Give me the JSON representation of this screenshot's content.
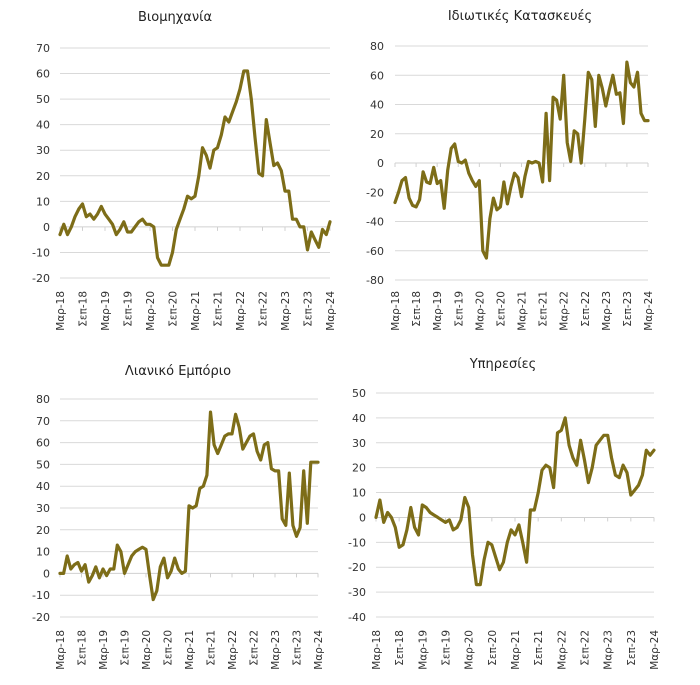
{
  "colors": {
    "line": "#7d6d18",
    "grid": "#d9d9d9"
  },
  "x_tick_labels": [
    "Μαρ-18",
    "Σεπ-18",
    "Μαρ-19",
    "Σεπ-19",
    "Μαρ-20",
    "Σεπ-20",
    "Μαρ-21",
    "Σεπ-21",
    "Μαρ-22",
    "Σεπ-22",
    "Μαρ-23",
    "Σεπ-23",
    "Μαρ-24"
  ],
  "chart_data": [
    {
      "type": "line",
      "title": "Βιομηχανία",
      "xlabel": "",
      "ylabel": "",
      "ylim": [
        -20,
        70
      ],
      "yticks": [
        70,
        60,
        50,
        40,
        30,
        20,
        10,
        0,
        -10,
        -20
      ],
      "grid": true,
      "x_range": [
        "Μαρ-18",
        "Μαρ-24"
      ],
      "values": [
        -3,
        1,
        -3,
        0,
        4,
        7,
        9,
        4,
        5,
        3,
        5,
        8,
        5,
        3,
        1,
        -3,
        -1,
        2,
        -2,
        -2,
        0,
        2,
        3,
        1,
        1,
        0,
        -12,
        -15,
        -15,
        -15,
        -10,
        -1,
        3,
        7,
        12,
        11,
        12,
        20,
        31,
        28,
        23,
        30,
        31,
        36,
        43,
        41,
        45,
        49,
        54,
        61,
        61,
        50,
        35,
        21,
        20,
        42,
        33,
        24,
        25,
        22,
        14,
        14,
        3,
        3,
        0,
        0,
        -9,
        -2,
        -5,
        -8,
        -1,
        -3,
        2
      ]
    },
    {
      "type": "line",
      "title": "Ιδιωτικές Κατασκευές",
      "xlabel": "",
      "ylabel": "",
      "ylim": [
        -80,
        80
      ],
      "yticks": [
        80,
        60,
        40,
        20,
        0,
        -20,
        -40,
        -60,
        -80
      ],
      "grid": true,
      "x_range": [
        "Μαρ-18",
        "Μαρ-24"
      ],
      "values": [
        -27,
        -20,
        -12,
        -10,
        -24,
        -29,
        -30,
        -25,
        -6,
        -13,
        -14,
        -3,
        -14,
        -12,
        -31,
        -5,
        10,
        13,
        1,
        0,
        2,
        -7,
        -12,
        -16,
        -12,
        -60,
        -65,
        -38,
        -24,
        -32,
        -30,
        -13,
        -28,
        -16,
        -7,
        -10,
        -23,
        -9,
        1,
        0,
        1,
        0,
        -13,
        34,
        -12,
        45,
        43,
        30,
        60,
        14,
        1,
        22,
        20,
        0,
        30,
        62,
        57,
        25,
        60,
        51,
        39,
        50,
        60,
        47,
        48,
        27,
        69,
        55,
        52,
        62,
        34,
        29,
        29
      ]
    },
    {
      "type": "line",
      "title": "Λιανικό Εμπόριο",
      "xlabel": "",
      "ylabel": "",
      "ylim": [
        -20,
        80
      ],
      "yticks": [
        80,
        70,
        60,
        50,
        40,
        30,
        20,
        10,
        0,
        -10,
        -20
      ],
      "grid": true,
      "x_range": [
        "Μαρ-18",
        "Μαρ-24"
      ],
      "values": [
        0,
        0,
        8,
        2,
        4,
        5,
        1,
        4,
        -4,
        -1,
        3,
        -2,
        2,
        -1,
        2,
        2,
        13,
        10,
        0,
        4,
        8,
        10,
        11,
        12,
        11,
        -1,
        -12,
        -8,
        3,
        7,
        -2,
        1,
        7,
        2,
        0,
        1,
        31,
        30,
        31,
        39,
        40,
        45,
        74,
        59,
        55,
        59,
        63,
        64,
        64,
        73,
        67,
        57,
        60,
        63,
        64,
        56,
        52,
        59,
        60,
        48,
        47,
        47,
        25,
        22,
        46,
        22,
        17,
        21,
        47,
        23,
        51,
        51,
        51
      ]
    },
    {
      "type": "line",
      "title": "Υπηρεσίες",
      "xlabel": "",
      "ylabel": "",
      "ylim": [
        -40,
        50
      ],
      "yticks": [
        50,
        40,
        30,
        20,
        10,
        0,
        -10,
        -20,
        -30,
        -40
      ],
      "grid": true,
      "x_range": [
        "Μαρ-18",
        "Μαρ-24"
      ],
      "values": [
        0,
        7,
        -2,
        2,
        0,
        -4,
        -12,
        -11,
        -5,
        4,
        -4,
        -7,
        5,
        4,
        2,
        1,
        0,
        -1,
        -2,
        -1,
        -5,
        -4,
        -1,
        8,
        4,
        -15,
        -27,
        -27,
        -17,
        -10,
        -11,
        -16,
        -21,
        -18,
        -10,
        -5,
        -7,
        -3,
        -10,
        -18,
        3,
        3,
        10,
        19,
        21,
        20,
        12,
        34,
        35,
        40,
        29,
        24,
        21,
        31,
        23,
        14,
        20,
        29,
        31,
        33,
        33,
        24,
        17,
        16,
        21,
        18,
        9,
        11,
        13,
        17,
        27,
        25,
        27
      ]
    }
  ]
}
